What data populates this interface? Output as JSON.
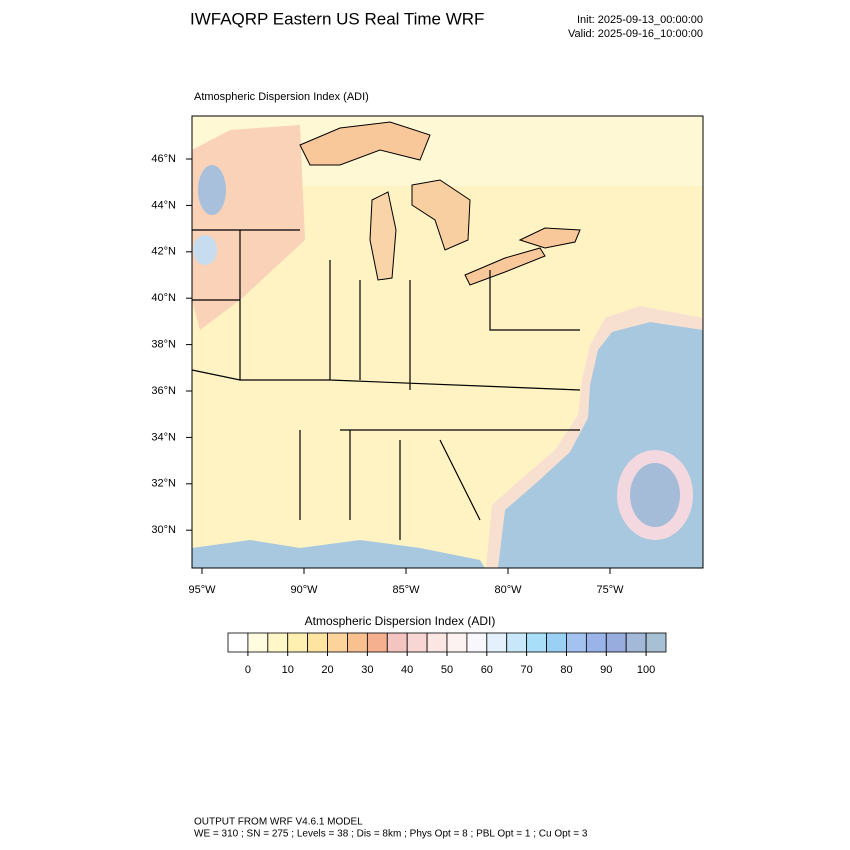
{
  "header": {
    "title": "IWFAQRP Eastern US Real Time WRF",
    "init": "Init: 2025-09-13_00:00:00",
    "valid": "Valid: 2025-09-16_10:00:00"
  },
  "map": {
    "title": "Atmospheric Dispersion Index   (ADI)",
    "lat_labels": [
      "46°N",
      "44°N",
      "42°N",
      "40°N",
      "38°N",
      "36°N",
      "34°N",
      "32°N",
      "30°N"
    ],
    "lon_labels": [
      "95°W",
      "90°W",
      "85°W",
      "80°W",
      "75°W"
    ]
  },
  "colorbar": {
    "title": "Atmospheric Dispersion Index  (ADI)",
    "colors": [
      "#ffffff",
      "#fffce0",
      "#fff7c8",
      "#fef0b0",
      "#fde4a0",
      "#fcd39a",
      "#f9c090",
      "#f5b090",
      "#f4c4c0",
      "#f8d6d4",
      "#fbe6e4",
      "#fdf2f2",
      "#f8f8fc",
      "#e4f0fb",
      "#c8e8fa",
      "#a8def8",
      "#9ad0f4",
      "#a4c2f0",
      "#9ab4ea",
      "#98acde",
      "#a4b8d8",
      "#a8c0d4"
    ],
    "ticks": [
      0,
      10,
      20,
      30,
      40,
      50,
      60,
      70,
      80,
      90,
      100
    ]
  },
  "footer": {
    "line1": "OUTPUT FROM WRF V4.6.1 MODEL",
    "line2": "WE = 310 ; SN = 275 ; Levels = 38 ; Dis = 8km ; Phys Opt = 8 ; PBL Opt = 1 ; Cu Opt = 3"
  }
}
